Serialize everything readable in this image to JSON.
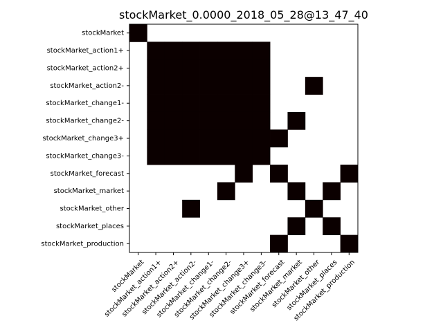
{
  "chart_data": {
    "type": "heatmap",
    "title": "stockMarket_0.0000_2018_05_28@13_47_40",
    "xlabel": "",
    "ylabel": "",
    "row_labels": [
      "stockMarket",
      "stockMarket_action1+",
      "stockMarket_action2+",
      "stockMarket_action2-",
      "stockMarket_change1-",
      "stockMarket_change2-",
      "stockMarket_change3+",
      "stockMarket_change3-",
      "stockMarket_forecast",
      "stockMarket_market",
      "stockMarket_other",
      "stockMarket_places",
      "stockMarket_production"
    ],
    "col_labels": [
      "stockMarket",
      "stockMarket_action1+",
      "stockMarket_action2+",
      "stockMarket_action2-",
      "stockMarket_change1-",
      "stockMarket_change2-",
      "stockMarket_change3+",
      "stockMarket_change3-",
      "stockMarket_forecast",
      "stockMarket_market",
      "stockMarket_other",
      "stockMarket_places",
      "stockMarket_production"
    ],
    "matrix": [
      [
        1,
        0,
        0,
        0,
        0,
        0,
        0,
        0,
        0,
        0,
        0,
        0,
        0
      ],
      [
        0,
        1,
        1,
        1,
        1,
        1,
        1,
        1,
        0,
        0,
        0,
        0,
        0
      ],
      [
        0,
        1,
        1,
        1,
        1,
        1,
        1,
        1,
        0,
        0,
        0,
        0,
        0
      ],
      [
        0,
        1,
        1,
        1,
        1,
        1,
        1,
        1,
        0,
        0,
        1,
        0,
        0
      ],
      [
        0,
        1,
        1,
        1,
        1,
        1,
        1,
        1,
        0,
        0,
        0,
        0,
        0
      ],
      [
        0,
        1,
        1,
        1,
        1,
        1,
        1,
        1,
        0,
        1,
        0,
        0,
        0
      ],
      [
        0,
        1,
        1,
        1,
        1,
        1,
        1,
        1,
        1,
        0,
        0,
        0,
        0
      ],
      [
        0,
        1,
        1,
        1,
        1,
        1,
        1,
        1,
        0,
        0,
        0,
        0,
        0
      ],
      [
        0,
        0,
        0,
        0,
        0,
        0,
        1,
        0,
        1,
        0,
        0,
        0,
        1
      ],
      [
        0,
        0,
        0,
        0,
        0,
        1,
        0,
        0,
        0,
        1,
        0,
        1,
        0
      ],
      [
        0,
        0,
        0,
        1,
        0,
        0,
        0,
        0,
        0,
        0,
        1,
        0,
        0
      ],
      [
        0,
        0,
        0,
        0,
        0,
        0,
        0,
        0,
        0,
        1,
        0,
        1,
        0
      ],
      [
        0,
        0,
        0,
        0,
        0,
        0,
        0,
        0,
        1,
        0,
        0,
        0,
        1
      ]
    ],
    "value_range": [
      0,
      1
    ],
    "colors": {
      "filled": "#0b0000",
      "empty": "#ffffff",
      "frame": "#000000"
    },
    "grid": false,
    "legend": "none"
  }
}
